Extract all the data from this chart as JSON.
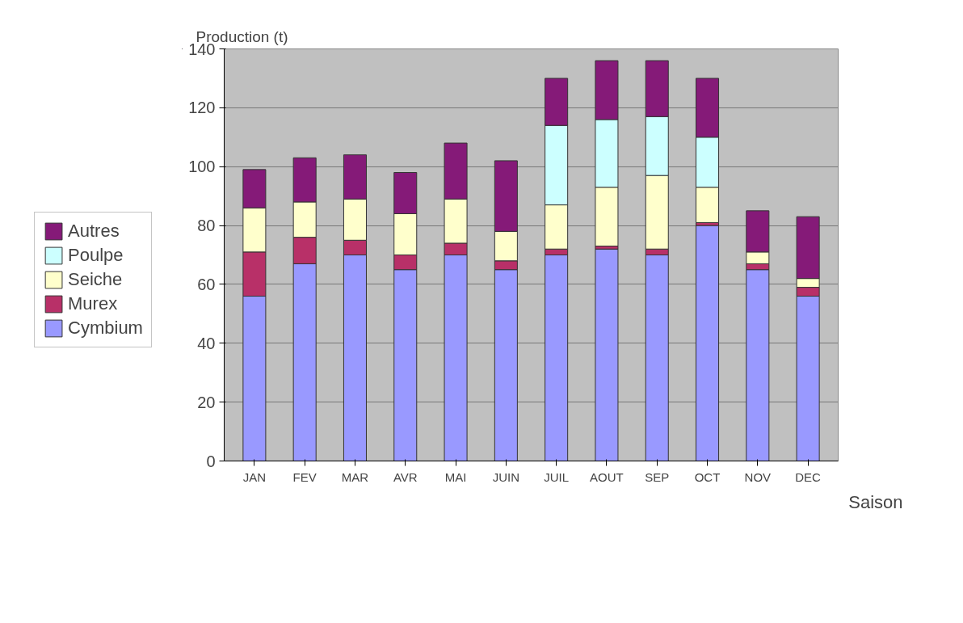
{
  "chart_data": {
    "type": "bar",
    "stacked": true,
    "xlabel": "Saison",
    "ylabel": "Production (t)",
    "categories": [
      "JAN",
      "FEV",
      "MAR",
      "AVR",
      "MAI",
      "JUIN",
      "JUIL",
      "AOUT",
      "SEP",
      "OCT",
      "NOV",
      "DEC"
    ],
    "series": [
      {
        "name": "Cymbium",
        "color": "#9999ff",
        "values": [
          56,
          67,
          70,
          65,
          70,
          65,
          70,
          72,
          70,
          80,
          65,
          56
        ]
      },
      {
        "name": "Murex",
        "color": "#b83068",
        "values": [
          15,
          9,
          5,
          5,
          4,
          3,
          2,
          1,
          2,
          1,
          2,
          3
        ]
      },
      {
        "name": "Seiche",
        "color": "#ffffcc",
        "values": [
          15,
          12,
          14,
          14,
          15,
          10,
          15,
          20,
          25,
          12,
          4,
          3
        ]
      },
      {
        "name": "Poulpe",
        "color": "#ccffff",
        "values": [
          0,
          0,
          0,
          0,
          0,
          0,
          27,
          23,
          20,
          17,
          0,
          0
        ]
      },
      {
        "name": "Autres",
        "color": "#851a78",
        "values": [
          13,
          15,
          15,
          14,
          19,
          24,
          16,
          20,
          19,
          20,
          14,
          21
        ]
      }
    ],
    "ylim": [
      0,
      140
    ],
    "yticks": [
      0,
      20,
      40,
      60,
      80,
      100,
      120,
      140
    ],
    "grid": "y",
    "legend": "left"
  }
}
